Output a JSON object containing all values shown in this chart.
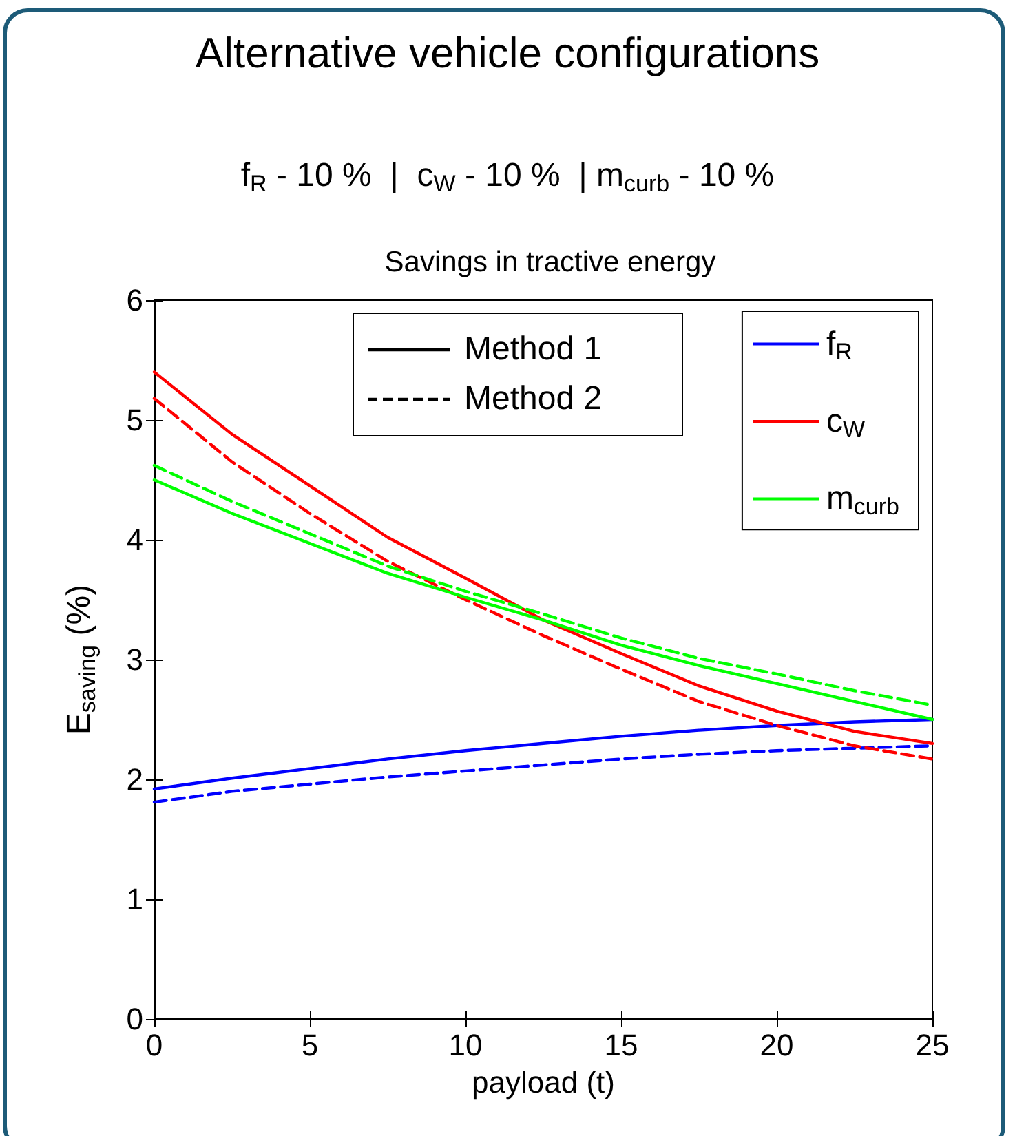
{
  "chart_data": {
    "type": "line",
    "title": "Alternative vehicle configurations",
    "subtitle": "f$_{R}$ - 10 %  |  c$_{W}$ - 10 %  | m$_{curb}$ - 10 %",
    "xlabel": "payload (t)",
    "ylabel": "E$_{saving}$ (%)",
    "annotations": [
      "Savings in tractive energy",
      "Method 1",
      "Method 2"
    ],
    "x": [
      0,
      2.5,
      5,
      7.5,
      10,
      12.5,
      15,
      17.5,
      20,
      22.5,
      25
    ],
    "xlim": [
      0,
      25
    ],
    "xticks": [
      0,
      5,
      10,
      15,
      20,
      25
    ],
    "ylim": [
      0,
      6
    ],
    "yticks": [
      0,
      1,
      2,
      3,
      4,
      5,
      6
    ],
    "grid": false,
    "legend": "top right",
    "marker": "none",
    "series": [
      {
        "name": "f$_{R}$",
        "color": "#0000ff",
        "line_style": "solid",
        "values": [
          1.92,
          2.01,
          2.09,
          2.17,
          2.24,
          2.3,
          2.36,
          2.41,
          2.45,
          2.48,
          2.5
        ]
      },
      {
        "color": "#0000ff",
        "line_style": "dashed",
        "values": [
          1.81,
          1.9,
          1.96,
          2.02,
          2.07,
          2.12,
          2.17,
          2.21,
          2.24,
          2.26,
          2.28
        ]
      },
      {
        "name": "c$_{W}$",
        "color": "#ff0000",
        "line_style": "solid",
        "values": [
          5.4,
          4.88,
          4.45,
          4.02,
          3.68,
          3.33,
          3.05,
          2.78,
          2.57,
          2.4,
          2.3
        ]
      },
      {
        "color": "#ff0000",
        "line_style": "dashed",
        "values": [
          5.18,
          4.65,
          4.22,
          3.82,
          3.5,
          3.2,
          2.92,
          2.65,
          2.45,
          2.28,
          2.17
        ]
      },
      {
        "name": "m$_{curb}$",
        "color": "#00ff00",
        "line_style": "solid",
        "values": [
          4.5,
          4.22,
          3.97,
          3.72,
          3.52,
          3.33,
          3.12,
          2.95,
          2.8,
          2.65,
          2.5
        ]
      },
      {
        "color": "#00ff00",
        "line_style": "dashed",
        "values": [
          4.62,
          4.32,
          4.05,
          3.78,
          3.57,
          3.38,
          3.18,
          3.01,
          2.88,
          2.74,
          2.62
        ]
      }
    ]
  }
}
